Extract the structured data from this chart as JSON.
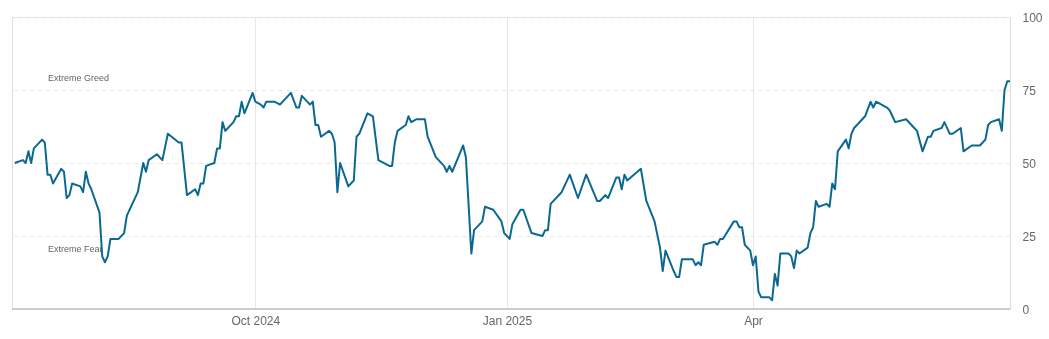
{
  "chart_data": {
    "type": "line",
    "x": [
      "2024-07-05",
      "2024-07-08",
      "2024-07-09",
      "2024-07-10",
      "2024-07-11",
      "2024-07-12",
      "2024-07-15",
      "2024-07-16",
      "2024-07-17",
      "2024-07-18",
      "2024-07-19",
      "2024-07-22",
      "2024-07-23",
      "2024-07-24",
      "2024-07-25",
      "2024-07-26",
      "2024-07-29",
      "2024-07-30",
      "2024-07-31",
      "2024-08-01",
      "2024-08-02",
      "2024-08-05",
      "2024-08-06",
      "2024-08-07",
      "2024-08-08",
      "2024-08-09",
      "2024-08-12",
      "2024-08-14",
      "2024-08-15",
      "2024-08-19",
      "2024-08-21",
      "2024-08-22",
      "2024-08-23",
      "2024-08-26",
      "2024-08-28",
      "2024-08-30",
      "2024-09-03",
      "2024-09-04",
      "2024-09-06",
      "2024-09-09",
      "2024-09-10",
      "2024-09-11",
      "2024-09-12",
      "2024-09-13",
      "2024-09-16",
      "2024-09-17",
      "2024-09-18",
      "2024-09-19",
      "2024-09-20",
      "2024-09-23",
      "2024-09-24",
      "2024-09-25",
      "2024-09-26",
      "2024-09-27",
      "2024-09-30",
      "2024-10-01",
      "2024-10-03",
      "2024-10-04",
      "2024-10-05",
      "2024-10-07",
      "2024-10-08",
      "2024-10-10",
      "2024-10-14",
      "2024-10-16",
      "2024-10-17",
      "2024-10-18",
      "2024-10-21",
      "2024-10-22",
      "2024-10-23",
      "2024-10-24",
      "2024-10-25",
      "2024-10-28",
      "2024-10-29",
      "2024-10-30",
      "2024-10-31",
      "2024-11-01",
      "2024-11-04",
      "2024-11-06",
      "2024-11-07",
      "2024-11-08",
      "2024-11-11",
      "2024-11-13",
      "2024-11-15",
      "2024-11-19",
      "2024-11-20",
      "2024-11-21",
      "2024-11-22",
      "2024-11-25",
      "2024-11-26",
      "2024-11-27",
      "2024-11-29",
      "2024-12-02",
      "2024-12-03",
      "2024-12-06",
      "2024-12-09",
      "2024-12-10",
      "2024-12-11",
      "2024-12-12",
      "2024-12-16",
      "2024-12-17",
      "2024-12-19",
      "2024-12-20",
      "2024-12-23",
      "2024-12-24",
      "2024-12-27",
      "2024-12-30",
      "2024-12-31",
      "2025-01-02",
      "2025-01-03",
      "2025-01-06",
      "2025-01-07",
      "2025-01-10",
      "2025-01-14",
      "2025-01-15",
      "2025-01-16",
      "2025-01-17",
      "2025-01-21",
      "2025-01-24",
      "2025-01-27",
      "2025-01-30",
      "2025-02-03",
      "2025-02-04",
      "2025-02-06",
      "2025-02-07",
      "2025-02-10",
      "2025-02-11",
      "2025-02-12",
      "2025-02-13",
      "2025-02-14",
      "2025-02-19",
      "2025-02-21",
      "2025-02-24",
      "2025-02-26",
      "2025-02-27",
      "2025-02-28",
      "2025-03-03",
      "2025-03-04",
      "2025-03-05",
      "2025-03-06",
      "2025-03-10",
      "2025-03-11",
      "2025-03-12",
      "2025-03-13",
      "2025-03-14",
      "2025-03-18",
      "2025-03-19",
      "2025-03-20",
      "2025-03-21",
      "2025-03-25",
      "2025-03-26",
      "2025-03-27",
      "2025-03-28",
      "2025-03-29",
      "2025-03-31",
      "2025-04-01",
      "2025-04-02",
      "2025-04-03",
      "2025-04-04",
      "2025-04-07",
      "2025-04-08",
      "2025-04-09",
      "2025-04-10",
      "2025-04-11",
      "2025-04-14",
      "2025-04-15",
      "2025-04-16",
      "2025-04-17",
      "2025-04-18",
      "2025-04-21",
      "2025-04-22",
      "2025-04-23",
      "2025-04-24",
      "2025-04-25",
      "2025-04-28",
      "2025-04-29",
      "2025-04-30",
      "2025-05-01",
      "2025-05-02",
      "2025-05-05",
      "2025-05-06",
      "2025-05-07",
      "2025-05-08",
      "2025-05-12",
      "2025-05-14",
      "2025-05-15",
      "2025-05-16",
      "2025-05-20",
      "2025-05-21",
      "2025-05-22",
      "2025-05-23",
      "2025-05-27",
      "2025-05-30",
      "2025-05-31",
      "2025-06-02",
      "2025-06-04",
      "2025-06-05",
      "2025-06-06",
      "2025-06-09",
      "2025-06-10",
      "2025-06-12",
      "2025-06-13",
      "2025-06-16",
      "2025-06-17",
      "2025-06-20",
      "2025-06-23",
      "2025-06-25",
      "2025-06-26",
      "2025-06-27",
      "2025-06-30",
      "2025-07-01",
      "2025-07-02",
      "2025-07-03",
      "2025-07-04"
    ],
    "series": [
      {
        "color": "#0b6991",
        "values": [
          50,
          51,
          50,
          54,
          50,
          55,
          58,
          57,
          46,
          46,
          43,
          48,
          47,
          38,
          39,
          43,
          42,
          40,
          47,
          43,
          41,
          33,
          18,
          16,
          18,
          24,
          24,
          26,
          32,
          40,
          50,
          47,
          51,
          53,
          51,
          60,
          57,
          57,
          39,
          41,
          39,
          43,
          43,
          49,
          50,
          55,
          55,
          64,
          61,
          64,
          66,
          66,
          71,
          67,
          74,
          71,
          70,
          69,
          71,
          71,
          71,
          70,
          74,
          69,
          69,
          73,
          70,
          71,
          63,
          63,
          59,
          61,
          60,
          57,
          40,
          50,
          42,
          44,
          59,
          60,
          67,
          66,
          51,
          49,
          49,
          57,
          61,
          63,
          66,
          64,
          65,
          65,
          59,
          52,
          49,
          47,
          49,
          47,
          56,
          52,
          19,
          27,
          30,
          35,
          34,
          30,
          26,
          24,
          29,
          34,
          34,
          26,
          25,
          27,
          27,
          36,
          40,
          46,
          38,
          46,
          37,
          37,
          39,
          38,
          45,
          45,
          41,
          46,
          44,
          48,
          37,
          30,
          21,
          13,
          20,
          13,
          11,
          11,
          17,
          17,
          15,
          16,
          15,
          22,
          23,
          22,
          24,
          24,
          30,
          30,
          28,
          28,
          22,
          20,
          15,
          18,
          6,
          4,
          4,
          3,
          12,
          8,
          19,
          19,
          18,
          14,
          20,
          19,
          21,
          26,
          28,
          37,
          35,
          36,
          35,
          43,
          41,
          54,
          58,
          55,
          60,
          62,
          66,
          71,
          69,
          71,
          69,
          68,
          66,
          64,
          65,
          62,
          61,
          54,
          59,
          59,
          61,
          62,
          64,
          60,
          60,
          62,
          54,
          56,
          56,
          58,
          63,
          64,
          65,
          61,
          75,
          78,
          78
        ]
      }
    ],
    "xlim": [
      "2024-07-04",
      "2025-07-04"
    ],
    "xticks": [
      {
        "value": "2024-10-01",
        "label": "Oct 2024"
      },
      {
        "value": "2025-01-01",
        "label": "Jan 2025"
      },
      {
        "value": "2025-04-01",
        "label": "Apr"
      }
    ],
    "ylim": [
      0,
      100
    ],
    "yticks": [
      0,
      25,
      50,
      75,
      100
    ],
    "grid": true,
    "line_style": "solid",
    "annotations": [
      "Extreme Greed",
      "Extreme Fear"
    ]
  }
}
